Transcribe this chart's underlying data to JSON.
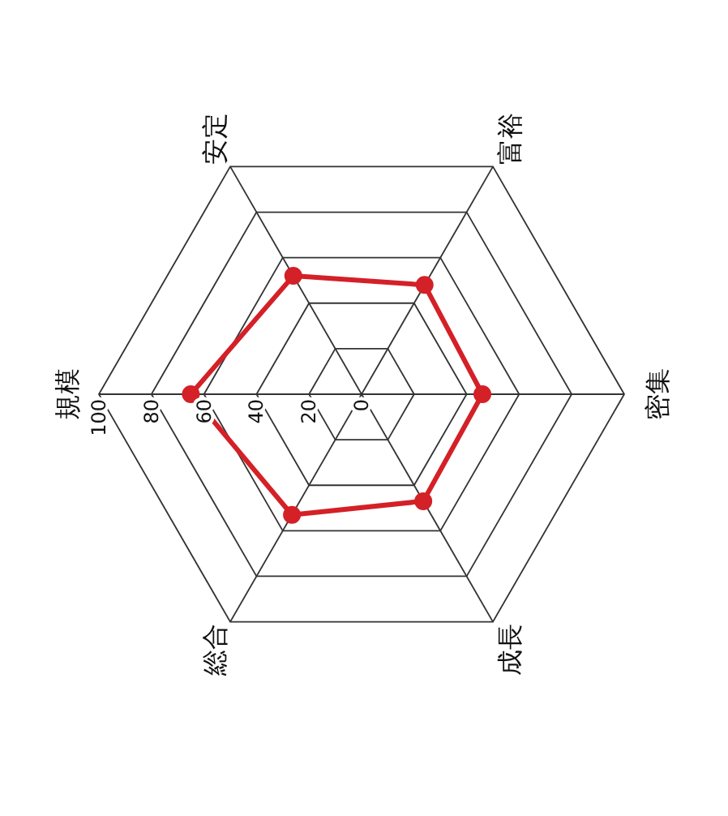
{
  "chart_data": {
    "type": "radar",
    "categories": [
      "規模",
      "安定",
      "富裕",
      "密集",
      "成長",
      "総合"
    ],
    "series": [
      {
        "color": "#d42027",
        "values": [
          65,
          52,
          48,
          46,
          47,
          53
        ]
      }
    ],
    "ylim": [
      0,
      100
    ],
    "yticks": [
      0,
      20,
      40,
      60,
      80,
      100
    ],
    "grid": true,
    "marker": "circle"
  }
}
